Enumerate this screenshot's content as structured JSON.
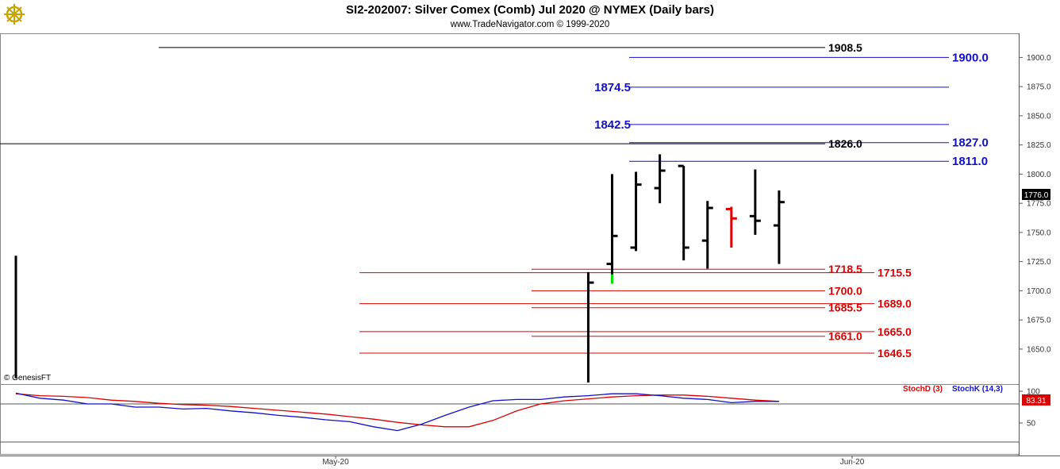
{
  "header": {
    "title": "SI2-202007:  Silver Comex (Comb) Jul 2020 @ NYMEX  (Daily bars)",
    "subtitle": "www.TradeNavigator.com © 1999-2020"
  },
  "watermark": "© GenesisFT",
  "logo_icon": "ship-wheel-icon",
  "colors": {
    "bar_up": "#000000",
    "bar_red": "#e00000",
    "bar_green": "#00dd00",
    "blue_level": "#1010c8",
    "red_level": "#dd0000",
    "black_level": "#000000",
    "stoch_d": "#dd0000",
    "stoch_k": "#1010c8",
    "last_price_bg": "#000000",
    "stoch_last_bg": "#dd0000"
  },
  "chart_data": [
    {
      "type": "ohlc",
      "ylim": [
        1620,
        1920
      ],
      "yticks": [
        1650.0,
        1675.0,
        1700.0,
        1725.0,
        1750.0,
        1775.0,
        1800.0,
        1825.0,
        1850.0,
        1875.0,
        1900.0
      ],
      "last_price": "1776.0",
      "x_labels": [
        "May-20",
        "Jun-20"
      ],
      "bars": [
        {
          "idx": 0,
          "high": 1730,
          "low": 1625,
          "close": 1730,
          "color": "black",
          "clipped": true
        },
        {
          "idx": 24,
          "high": 1716,
          "low": 1620,
          "close": 1707,
          "color": "black"
        },
        {
          "idx": 25,
          "high": 1800,
          "low": 1714,
          "open": 1723,
          "close": 1747,
          "color": "black",
          "low_tail_color": "green",
          "green_low": 1706
        },
        {
          "idx": 26,
          "high": 1802,
          "low": 1734,
          "open": 1737,
          "close": 1791,
          "color": "black"
        },
        {
          "idx": 27,
          "high": 1817,
          "low": 1775,
          "open": 1788,
          "close": 1803,
          "color": "black"
        },
        {
          "idx": 28,
          "high": 1807,
          "low": 1726,
          "open": 1807,
          "close": 1737,
          "color": "black"
        },
        {
          "idx": 29,
          "high": 1777,
          "low": 1719,
          "open": 1743,
          "close": 1771,
          "color": "black"
        },
        {
          "idx": 30,
          "high": 1772,
          "low": 1737,
          "open": 1770,
          "close": 1762,
          "color": "red"
        },
        {
          "idx": 31,
          "high": 1804,
          "low": 1748,
          "open": 1764,
          "close": 1760,
          "color": "black"
        },
        {
          "idx": 32,
          "high": 1786,
          "low": 1723,
          "open": 1756,
          "close": 1776,
          "color": "black"
        }
      ],
      "levels": [
        {
          "value": 1908.5,
          "label": "1908.5",
          "color": "black",
          "label_side": "left"
        },
        {
          "value": 1900.0,
          "label": "1900.0",
          "color": "blue",
          "label_side": "right"
        },
        {
          "value": 1874.5,
          "label": "1874.5",
          "color": "blue",
          "label_side": "left"
        },
        {
          "value": 1842.5,
          "label": "1842.5",
          "color": "blue",
          "label_side": "left"
        },
        {
          "value": 1827.0,
          "label": "1827.0",
          "color": "blue",
          "label_side": "right"
        },
        {
          "value": 1826.0,
          "label": "1826.0",
          "color": "black",
          "label_side": "left"
        },
        {
          "value": 1811.0,
          "label": "1811.0",
          "color": "blue",
          "label_side": "right"
        },
        {
          "value": 1718.5,
          "label": "1718.5",
          "color": "red",
          "label_side": "left"
        },
        {
          "value": 1715.5,
          "label": "1715.5",
          "color": "red",
          "label_side": "right"
        },
        {
          "value": 1700.0,
          "label": "1700.0",
          "color": "red",
          "label_side": "left"
        },
        {
          "value": 1689.0,
          "label": "1689.0",
          "color": "red",
          "label_side": "right"
        },
        {
          "value": 1685.5,
          "label": "1685.5",
          "color": "red",
          "label_side": "left"
        },
        {
          "value": 1665.0,
          "label": "1665.0",
          "color": "red",
          "label_side": "right"
        },
        {
          "value": 1661.0,
          "label": "1661.0",
          "color": "red",
          "label_side": "left"
        },
        {
          "value": 1646.5,
          "label": "1646.5",
          "color": "red",
          "label_side": "right"
        }
      ]
    },
    {
      "type": "line",
      "title": "StochD (3)  StochK (14,3)",
      "ylim": [
        0,
        110
      ],
      "yticks": [
        50,
        100
      ],
      "last_value": "83.31",
      "series": [
        {
          "name": "StochD (3)",
          "values": [
            96,
            93,
            92,
            90,
            86,
            84,
            81,
            79,
            78,
            76,
            73,
            70,
            67,
            64,
            60,
            56,
            51,
            47,
            44,
            44,
            54,
            69,
            80,
            85,
            88,
            91,
            93,
            94,
            94,
            92,
            89,
            86,
            84
          ]
        },
        {
          "name": "StochK (14,3)",
          "values": [
            97,
            89,
            86,
            80,
            80,
            75,
            75,
            72,
            73,
            69,
            66,
            62,
            59,
            55,
            52,
            44,
            38,
            48,
            62,
            75,
            85,
            87,
            87,
            91,
            93,
            96,
            96,
            93,
            89,
            87,
            82,
            84,
            84
          ]
        }
      ]
    }
  ]
}
